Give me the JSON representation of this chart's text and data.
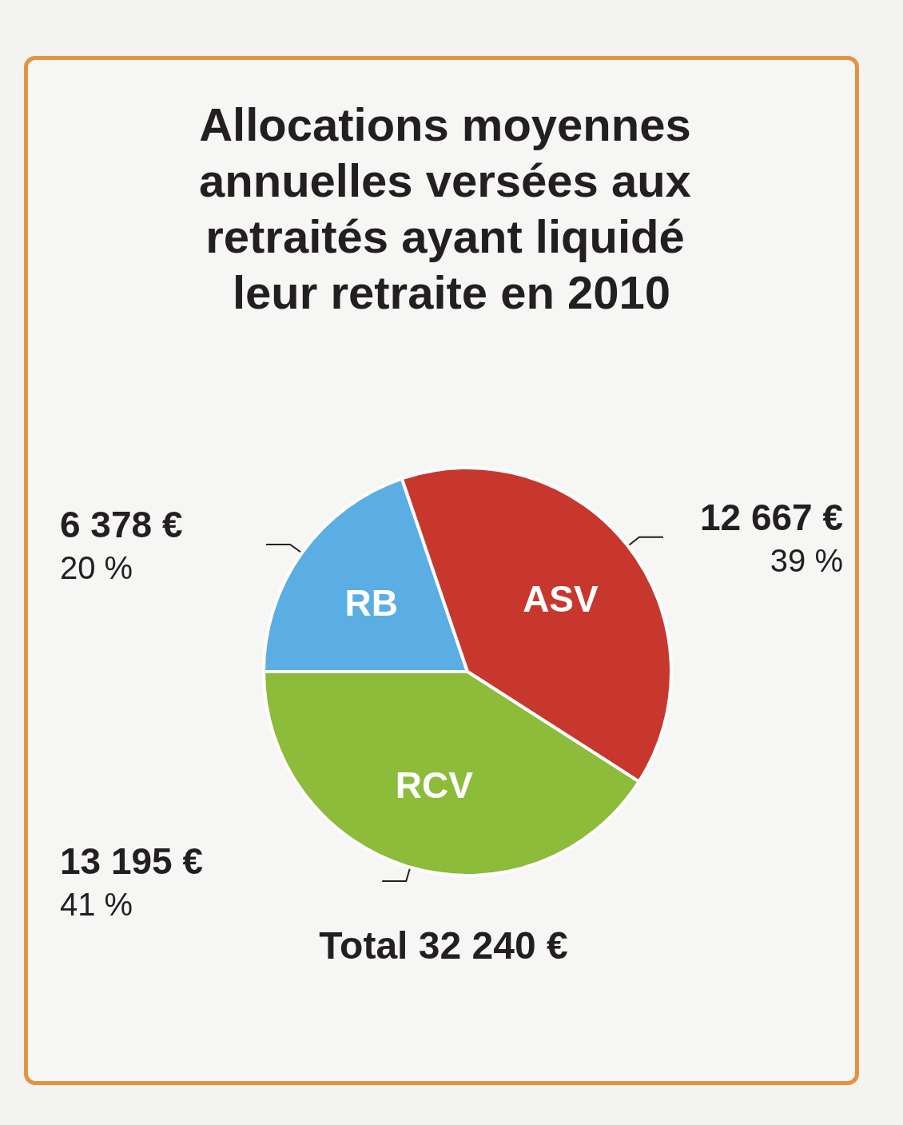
{
  "chart_data": {
    "type": "pie",
    "title": "Allocations moyennes annuelles versées aux retraités ayant liquidé leur retraite en 2010",
    "categories": [
      "RB",
      "ASV",
      "RCV"
    ],
    "values": [
      6378,
      12667,
      13195
    ],
    "colors": [
      "#5aaee3",
      "#c8372d",
      "#8dbb3a"
    ],
    "value_labels": [
      "6 378 €\n20 %",
      "12 667 €\n39 %",
      "13 195 €\n41 %"
    ],
    "annotations": [
      "Total 32 240 €"
    ]
  }
}
